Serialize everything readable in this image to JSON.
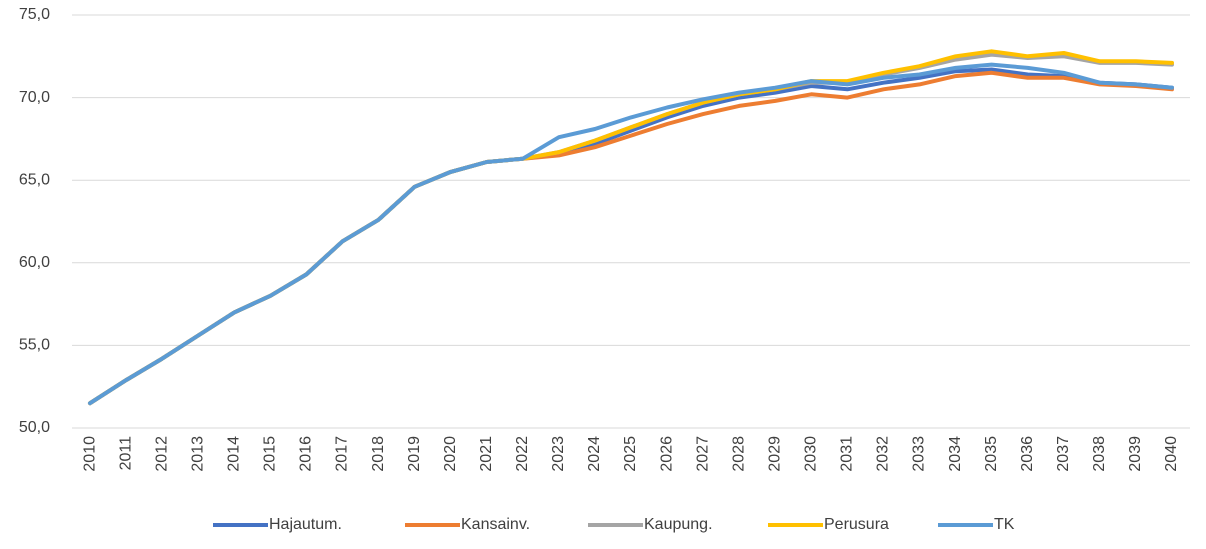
{
  "chart_data": {
    "type": "line",
    "categories": [
      "2010",
      "2011",
      "2012",
      "2013",
      "2014",
      "2015",
      "2016",
      "2017",
      "2018",
      "2019",
      "2020",
      "2021",
      "2022",
      "2023",
      "2024",
      "2025",
      "2026",
      "2027",
      "2028",
      "2029",
      "2030",
      "2031",
      "2032",
      "2033",
      "2034",
      "2035",
      "2036",
      "2037",
      "2038",
      "2039",
      "2040"
    ],
    "series": [
      {
        "name": "Hajautum.",
        "color": "#4472c4",
        "values": [
          51.5,
          52.9,
          54.2,
          55.6,
          57.0,
          58.0,
          59.3,
          61.3,
          62.6,
          64.6,
          65.5,
          66.1,
          66.3,
          66.6,
          67.2,
          68.0,
          68.8,
          69.5,
          70.0,
          70.3,
          70.7,
          70.5,
          70.9,
          71.2,
          71.6,
          71.7,
          71.4,
          71.3,
          70.9,
          70.8,
          70.6
        ]
      },
      {
        "name": "Kansainv.",
        "color": "#ed7d31",
        "values": [
          51.5,
          52.9,
          54.2,
          55.6,
          57.0,
          58.0,
          59.3,
          61.3,
          62.6,
          64.6,
          65.5,
          66.1,
          66.3,
          66.5,
          67.0,
          67.7,
          68.4,
          69.0,
          69.5,
          69.8,
          70.2,
          70.0,
          70.5,
          70.8,
          71.3,
          71.5,
          71.2,
          71.2,
          70.8,
          70.7,
          70.5
        ]
      },
      {
        "name": "Kaupung.",
        "color": "#a5a5a5",
        "values": [
          51.5,
          52.9,
          54.2,
          55.6,
          57.0,
          58.0,
          59.3,
          61.3,
          62.6,
          64.6,
          65.5,
          66.1,
          66.3,
          66.7,
          67.4,
          68.2,
          69.0,
          69.7,
          70.2,
          70.5,
          70.9,
          70.9,
          71.4,
          71.8,
          72.3,
          72.6,
          72.4,
          72.5,
          72.1,
          72.1,
          72.0
        ]
      },
      {
        "name": "Perusura",
        "color": "#ffc000",
        "values": [
          51.5,
          52.9,
          54.2,
          55.6,
          57.0,
          58.0,
          59.3,
          61.3,
          62.6,
          64.6,
          65.5,
          66.1,
          66.3,
          66.7,
          67.4,
          68.2,
          69.0,
          69.7,
          70.2,
          70.5,
          71.0,
          71.0,
          71.5,
          71.9,
          72.5,
          72.8,
          72.5,
          72.7,
          72.2,
          72.2,
          72.1
        ]
      },
      {
        "name": "TK",
        "color": "#5b9bd5",
        "values": [
          51.5,
          52.9,
          54.2,
          55.6,
          57.0,
          58.0,
          59.3,
          61.3,
          62.6,
          64.6,
          65.5,
          66.1,
          66.3,
          67.6,
          68.1,
          68.8,
          69.4,
          69.9,
          70.3,
          70.6,
          71.0,
          70.8,
          71.2,
          71.4,
          71.8,
          72.0,
          71.8,
          71.5,
          70.9,
          70.8,
          70.6
        ]
      }
    ],
    "ylim": [
      50,
      75
    ],
    "yticks": [
      {
        "value": 50,
        "label": "50,0"
      },
      {
        "value": 55,
        "label": "55,0"
      },
      {
        "value": 60,
        "label": "60,0"
      },
      {
        "value": 65,
        "label": "65,0"
      },
      {
        "value": 70,
        "label": "70,0"
      },
      {
        "value": 75,
        "label": "75,0"
      }
    ],
    "grid": true,
    "legend": "bottom"
  }
}
